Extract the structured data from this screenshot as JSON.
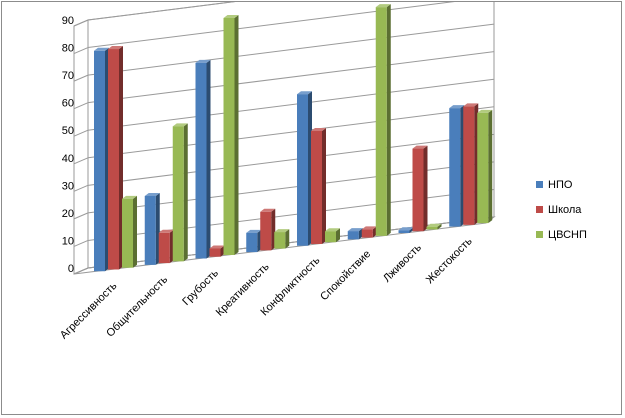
{
  "chart_data": {
    "type": "bar",
    "categories": [
      "Агрессивность",
      "Общительность",
      "Грубость",
      "Креативность",
      "Конфликтность",
      "Спокойствие",
      "Лживость",
      "Жестокость"
    ],
    "series": [
      {
        "name": "НПО",
        "color": "#4a7ebb",
        "values": [
          80,
          25,
          71,
          7,
          55,
          3,
          1,
          43
        ]
      },
      {
        "name": "Школа",
        "color": "#be4b48",
        "values": [
          80,
          11,
          3,
          14,
          41,
          3,
          30,
          43
        ]
      },
      {
        "name": "ЦВСНП",
        "color": "#98b954",
        "values": [
          25,
          49,
          86,
          6,
          4,
          83,
          1,
          40
        ]
      }
    ],
    "ylim": [
      0,
      90
    ],
    "yticks": [
      "0",
      "10",
      "20",
      "30",
      "40",
      "50",
      "60",
      "70",
      "80",
      "90"
    ],
    "grid": true,
    "legend_position": "right",
    "title": "",
    "xlabel": "",
    "ylabel": ""
  }
}
